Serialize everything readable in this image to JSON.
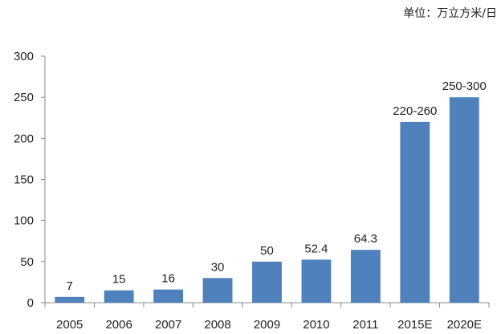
{
  "unit_note": "单位：万立方米/日",
  "chart_data": {
    "type": "bar",
    "categories": [
      "2005",
      "2006",
      "2007",
      "2008",
      "2009",
      "2010",
      "2011",
      "2015E",
      "2020E"
    ],
    "values": [
      7,
      15,
      16,
      30,
      50,
      52.4,
      64.3,
      220,
      250
    ],
    "data_labels": [
      "7",
      "15",
      "16",
      "30",
      "50",
      "52.4",
      "64.3",
      "220-260",
      "250-300"
    ],
    "title": "",
    "xlabel": "",
    "ylabel": "",
    "ylim": [
      0,
      300
    ],
    "yticks": [
      "0",
      "50",
      "100",
      "150",
      "200",
      "250",
      "300"
    ],
    "grid": false,
    "legend": "none",
    "bar_color": "#4f81bd",
    "axis_color": "#898989"
  }
}
